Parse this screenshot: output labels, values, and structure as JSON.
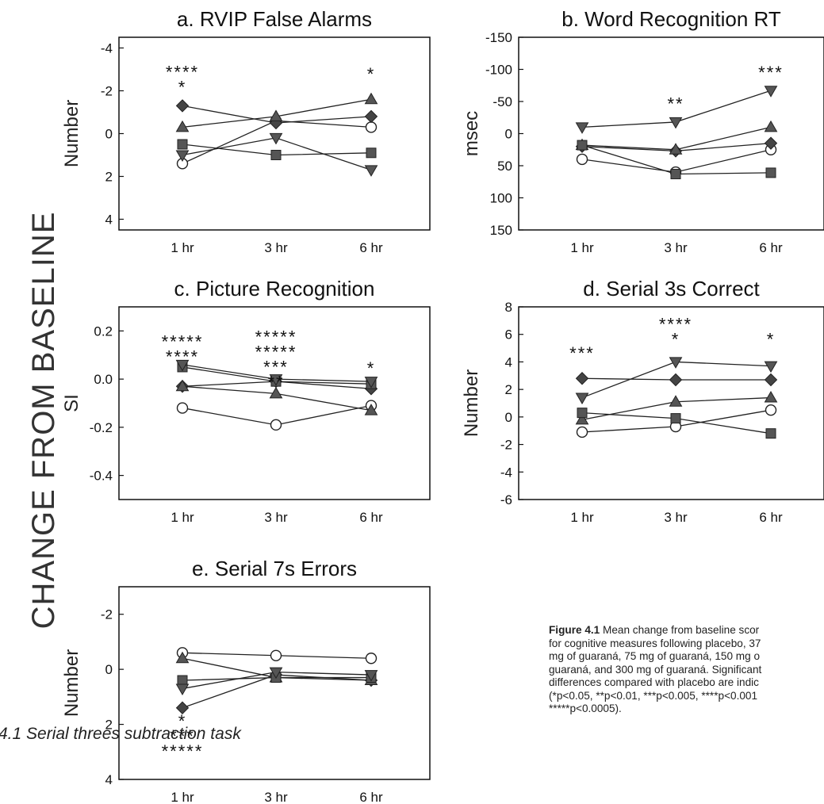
{
  "figure": {
    "side_title": "CHANGE FROM BASELINE",
    "caption_label": "Figure 4.1",
    "caption_lines": [
      " Mean change from baseline scor",
      "for cognitive measures following placebo, 37",
      "mg of guaraná, 75 mg of guaraná, 150 mg o",
      "guaraná, and 300 mg of guaraná. Significant",
      "differences compared with placebo are indic",
      "(*p<0.05, **p<0.01, ***p<0.005, ****p<0.001",
      "*****p<0.0005)."
    ],
    "footer_text": "4.1 Serial threes subtraction task"
  },
  "chart_data": [
    {
      "id": "a",
      "type": "line",
      "title": "a. RVIP False Alarms",
      "ylabel": "Number",
      "categories": [
        "1 hr",
        "3 hr",
        "6 hr"
      ],
      "ylim": [
        -4.5,
        4.5
      ],
      "y_inverted": true,
      "y_ticks": [
        -4,
        -2,
        0,
        2,
        4
      ],
      "y_tick_labels": [
        "-4",
        "-2",
        "0",
        "2",
        "4"
      ],
      "series": [
        {
          "marker": "circle-open",
          "values": [
            1.4,
            -0.6,
            -0.3
          ]
        },
        {
          "marker": "diamond",
          "values": [
            -1.3,
            -0.5,
            -0.8
          ]
        },
        {
          "marker": "triangle",
          "values": [
            -0.3,
            -0.8,
            -1.6
          ]
        },
        {
          "marker": "square",
          "values": [
            0.5,
            1.0,
            0.9
          ]
        },
        {
          "marker": "triangle-down",
          "values": [
            1.0,
            0.2,
            1.7
          ]
        }
      ],
      "annotations": [
        {
          "category": "1 hr",
          "y": -2.6,
          "lines": [
            "****",
            "*"
          ]
        },
        {
          "category": "6 hr",
          "y": -2.5,
          "lines": [
            "*"
          ]
        }
      ]
    },
    {
      "id": "b",
      "type": "line",
      "title": "b. Word Recognition RT",
      "ylabel": "msec",
      "categories": [
        "1 hr",
        "3 hr",
        "6 hr"
      ],
      "ylim": [
        -150,
        150
      ],
      "y_inverted": true,
      "y_ticks": [
        -150,
        -100,
        -50,
        0,
        50,
        100,
        150
      ],
      "y_tick_labels": [
        "-150",
        "-100",
        "-50",
        "0",
        "50",
        "100",
        "150"
      ],
      "series": [
        {
          "marker": "circle-open",
          "values": [
            40,
            60,
            25
          ]
        },
        {
          "marker": "diamond",
          "values": [
            20,
            27,
            15
          ]
        },
        {
          "marker": "triangle",
          "values": [
            18,
            25,
            -10
          ]
        },
        {
          "marker": "square",
          "values": [
            18,
            63,
            61
          ]
        },
        {
          "marker": "triangle-down",
          "values": [
            -10,
            -18,
            -67
          ]
        }
      ],
      "annotations": [
        {
          "category": "3 hr",
          "y": -37,
          "lines": [
            "**"
          ]
        },
        {
          "category": "6 hr",
          "y": -86,
          "lines": [
            "***"
          ]
        }
      ]
    },
    {
      "id": "c",
      "type": "line",
      "title": "c. Picture Recognition",
      "ylabel": "SI",
      "categories": [
        "1 hr",
        "3 hr",
        "6 hr"
      ],
      "ylim": [
        -0.5,
        0.3
      ],
      "y_inverted": false,
      "y_ticks": [
        0.2,
        0.0,
        -0.2,
        -0.4
      ],
      "y_tick_labels": [
        "0.2",
        "0.0",
        "-0.2",
        "-0.4"
      ],
      "series": [
        {
          "marker": "circle-open",
          "values": [
            -0.12,
            -0.19,
            -0.11
          ]
        },
        {
          "marker": "diamond",
          "values": [
            -0.03,
            -0.01,
            -0.04
          ]
        },
        {
          "marker": "triangle",
          "values": [
            -0.03,
            -0.06,
            -0.13
          ]
        },
        {
          "marker": "square",
          "values": [
            0.05,
            -0.01,
            -0.02
          ]
        },
        {
          "marker": "triangle-down",
          "values": [
            0.06,
            0.0,
            -0.01
          ]
        }
      ],
      "annotations": [
        {
          "category": "1 hr",
          "y": 0.13,
          "lines": [
            "*****",
            "****"
          ]
        },
        {
          "category": "3 hr",
          "y": 0.15,
          "lines": [
            "*****",
            "*****",
            "***",
            "**"
          ]
        },
        {
          "category": "6 hr",
          "y": 0.02,
          "lines": [
            "*"
          ]
        }
      ]
    },
    {
      "id": "d",
      "type": "line",
      "title": "d. Serial 3s Correct",
      "ylabel": "Number",
      "categories": [
        "1 hr",
        "3 hr",
        "6 hr"
      ],
      "ylim": [
        -6,
        8
      ],
      "y_inverted": false,
      "y_ticks": [
        8,
        6,
        4,
        2,
        0,
        -2,
        -4,
        -6
      ],
      "y_tick_labels": [
        "8",
        "6",
        "4",
        "2",
        "0",
        "-2",
        "-4",
        "-6"
      ],
      "series": [
        {
          "marker": "circle-open",
          "values": [
            -1.1,
            -0.7,
            0.5
          ]
        },
        {
          "marker": "diamond",
          "values": [
            2.8,
            2.7,
            2.7
          ]
        },
        {
          "marker": "triangle",
          "values": [
            -0.2,
            1.1,
            1.4
          ]
        },
        {
          "marker": "square",
          "values": [
            0.3,
            -0.1,
            -1.2
          ]
        },
        {
          "marker": "triangle-down",
          "values": [
            1.4,
            4.0,
            3.7
          ]
        }
      ],
      "annotations": [
        {
          "category": "1 hr",
          "y": 4.2,
          "lines": [
            "***"
          ]
        },
        {
          "category": "3 hr",
          "y": 6.3,
          "lines": [
            "****",
            "*"
          ]
        },
        {
          "category": "6 hr",
          "y": 5.2,
          "lines": [
            "*"
          ]
        }
      ]
    },
    {
      "id": "e",
      "type": "line",
      "title": "e. Serial 7s Errors",
      "ylabel": "Number",
      "categories": [
        "1 hr",
        "3 hr",
        "6 hr"
      ],
      "ylim": [
        -3,
        4
      ],
      "y_inverted": true,
      "y_ticks": [
        -2,
        0,
        2,
        4
      ],
      "y_tick_labels": [
        "-2",
        "0",
        "2",
        "4"
      ],
      "series": [
        {
          "marker": "circle-open",
          "values": [
            -0.6,
            -0.5,
            -0.4
          ]
        },
        {
          "marker": "diamond",
          "values": [
            1.4,
            0.2,
            0.4
          ]
        },
        {
          "marker": "triangle",
          "values": [
            -0.4,
            0.3,
            0.4
          ]
        },
        {
          "marker": "square",
          "values": [
            0.4,
            0.3,
            0.3
          ]
        },
        {
          "marker": "triangle-down",
          "values": [
            0.7,
            0.1,
            0.2
          ]
        }
      ],
      "annotations": [
        {
          "category": "1 hr",
          "y": 2.1,
          "lines": [
            "*",
            "***",
            "*****"
          ]
        }
      ]
    }
  ]
}
